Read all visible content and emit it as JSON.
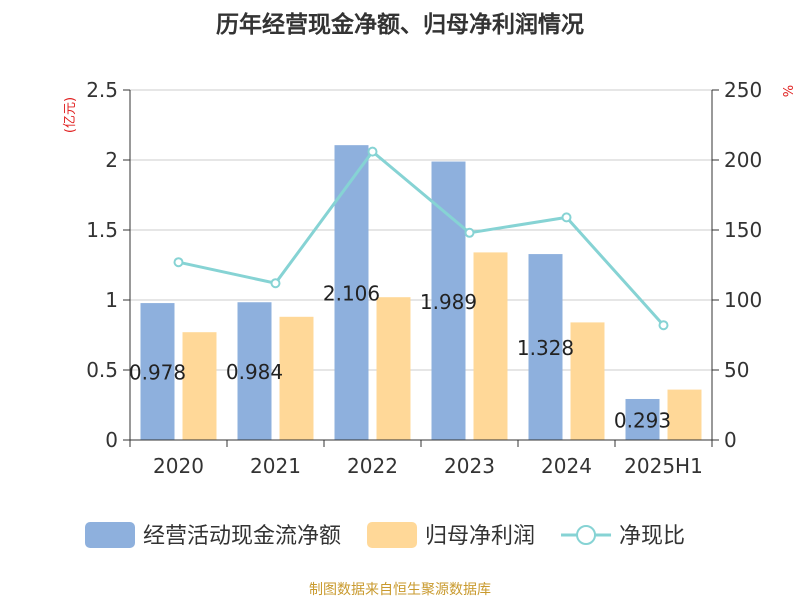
{
  "chart_data": {
    "type": "bar",
    "title": "历年经营现金净额、归母净利润情况",
    "left_axis_unit": "(亿元)",
    "right_axis_unit": "%",
    "categories": [
      "2020",
      "2021",
      "2022",
      "2023",
      "2024",
      "2025H1"
    ],
    "series": [
      {
        "name": "经营活动现金流净额",
        "type": "bar",
        "axis": "left",
        "color": "#8eb0dd",
        "values": [
          0.978,
          0.984,
          2.106,
          1.989,
          1.328,
          0.293
        ],
        "labels": [
          "0.978",
          "0.984",
          "2.106",
          "1.989",
          "1.328",
          "0.293"
        ]
      },
      {
        "name": "归母净利润",
        "type": "bar",
        "axis": "left",
        "color": "#ffd898",
        "values": [
          0.77,
          0.88,
          1.02,
          1.34,
          0.84,
          0.36
        ]
      },
      {
        "name": "净现比",
        "type": "line",
        "axis": "right",
        "color": "#86d3d4",
        "values": [
          127,
          112,
          206,
          148,
          159,
          82
        ]
      }
    ],
    "left_ylim": [
      0,
      2.5
    ],
    "left_yticks": [
      "0",
      "0.5",
      "1",
      "1.5",
      "2",
      "2.5"
    ],
    "right_ylim": [
      0,
      250
    ],
    "right_yticks": [
      "0",
      "50",
      "100",
      "150",
      "200",
      "250"
    ],
    "grid": true,
    "legend_position": "bottom"
  },
  "footer": {
    "source": "制图数据来自恒生聚源数据库"
  }
}
